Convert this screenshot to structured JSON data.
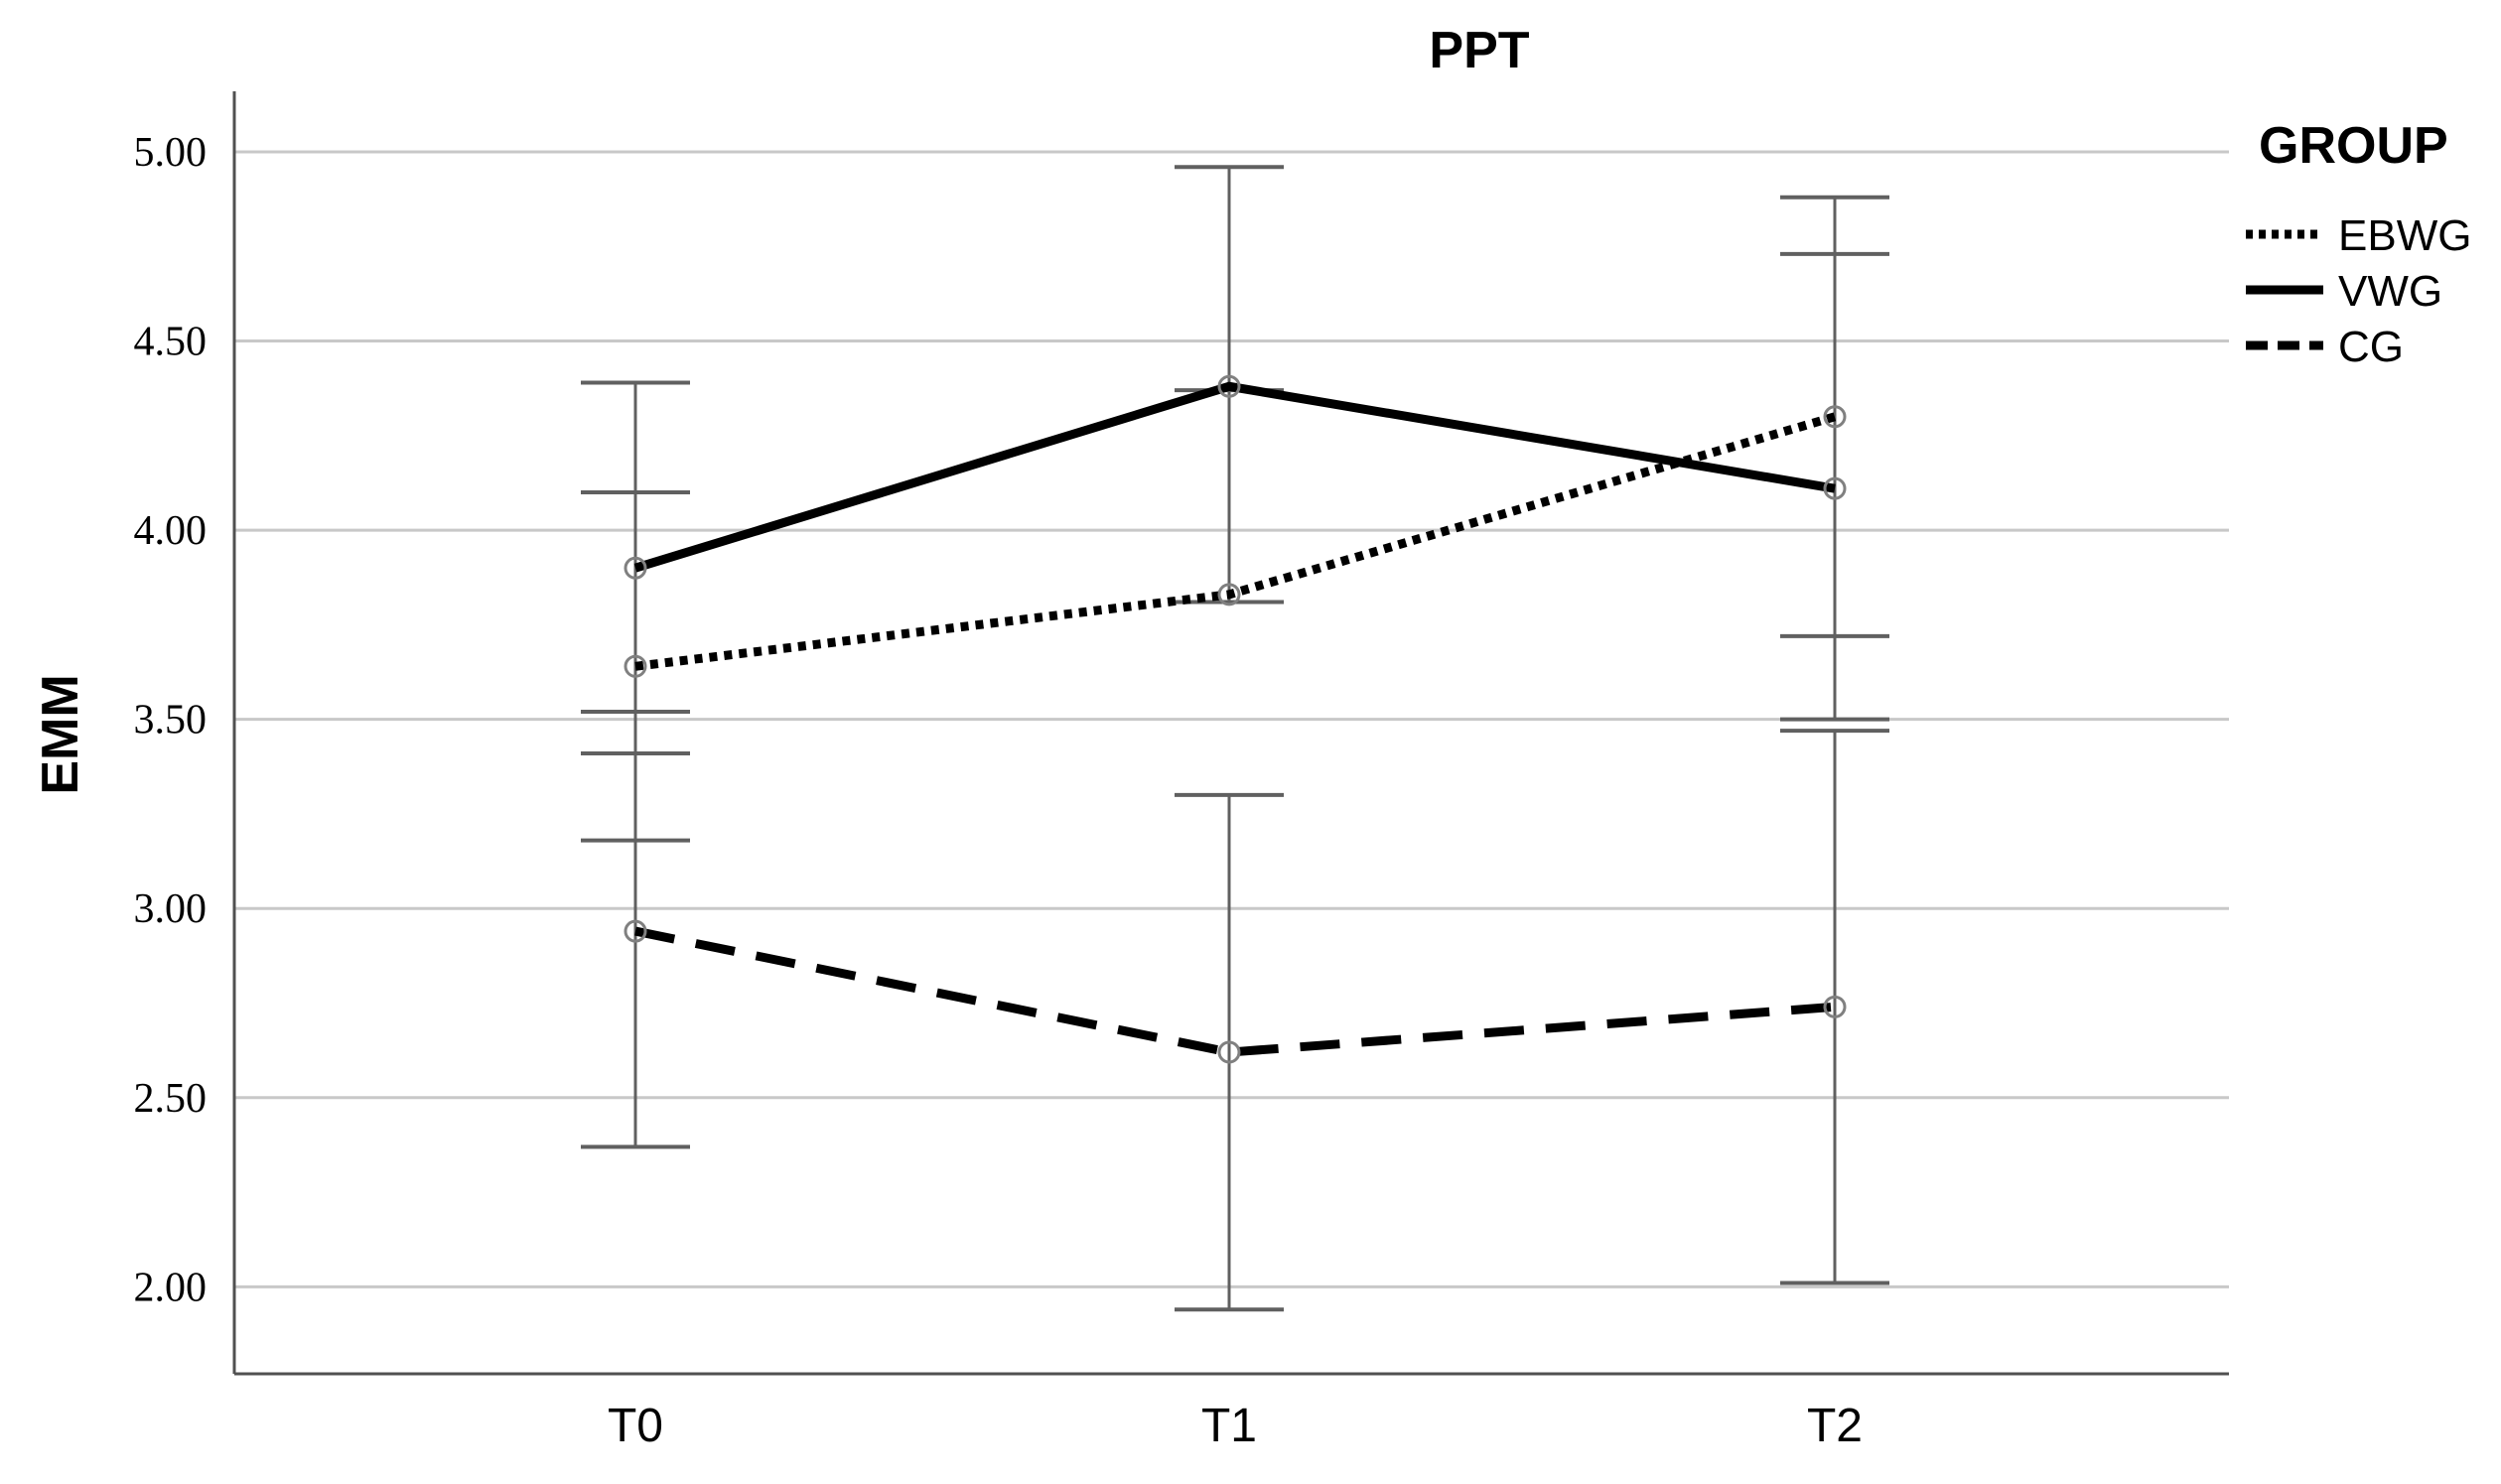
{
  "chart_data": {
    "type": "line",
    "title": "PPT",
    "xlabel": "",
    "ylabel": "EMM",
    "categories": [
      "T0",
      "T1",
      "T2"
    ],
    "ylim": [
      1.77,
      5.16
    ],
    "yticks": [
      "2.00",
      "2.50",
      "3.00",
      "3.50",
      "4.00",
      "4.50",
      "5.00"
    ],
    "grid": "horizontal",
    "legend": {
      "title": "GROUP",
      "placement": "right"
    },
    "series": [
      {
        "name": "EBWG",
        "line_style": "dotted",
        "color": "#000000",
        "values": [
          3.64,
          3.83,
          4.3
        ],
        "ci_lower": [
          3.18,
          3.81,
          3.72
        ],
        "ci_upper": [
          4.1,
          4.37,
          4.88
        ]
      },
      {
        "name": "VWG",
        "line_style": "solid",
        "color": "#000000",
        "values": [
          3.9,
          4.38,
          4.11
        ],
        "ci_lower": [
          3.41,
          3.81,
          3.5
        ],
        "ci_upper": [
          4.39,
          4.96,
          4.73
        ]
      },
      {
        "name": "CG",
        "line_style": "dashed",
        "color": "#000000",
        "values": [
          2.94,
          2.62,
          2.74
        ],
        "ci_lower": [
          2.37,
          1.94,
          2.01
        ],
        "ci_upper": [
          3.52,
          3.3,
          3.47
        ]
      }
    ],
    "colors": {
      "axis": "#505050",
      "grid": "#c8c8c8",
      "error_bar": "#606060",
      "marker": "#808080"
    }
  }
}
